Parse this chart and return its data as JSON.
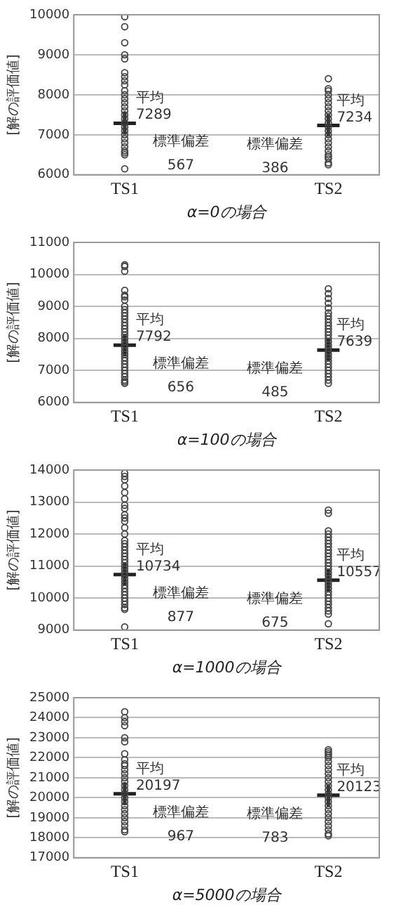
{
  "chart_data": [
    {
      "type": "scatter",
      "xlabel": "α=0の場合",
      "ylabel": "[解の評価値]",
      "categories": [
        "TS1",
        "TS2"
      ],
      "ylim": [
        6000,
        10000
      ],
      "yticks": [
        6000,
        7000,
        8000,
        9000,
        10000
      ],
      "grid": "y",
      "legend": false,
      "series": [
        {
          "marker": "circle",
          "color": "#444444",
          "x": [
            "TS1",
            "TS1",
            "TS1",
            "TS1",
            "TS1",
            "TS1",
            "TS1",
            "TS1",
            "TS1",
            "TS1",
            "TS1",
            "TS1",
            "TS1",
            "TS1",
            "TS1",
            "TS1",
            "TS1",
            "TS1",
            "TS1",
            "TS1",
            "TS1",
            "TS1",
            "TS1",
            "TS1",
            "TS1",
            "TS1",
            "TS1",
            "TS1",
            "TS2",
            "TS2",
            "TS2",
            "TS2",
            "TS2",
            "TS2",
            "TS2",
            "TS2",
            "TS2",
            "TS2",
            "TS2",
            "TS2",
            "TS2",
            "TS2",
            "TS2",
            "TS2",
            "TS2",
            "TS2",
            "TS2",
            "TS2",
            "TS2",
            "TS2",
            "TS2"
          ],
          "values": [
            9950,
            9700,
            9300,
            9000,
            8900,
            8550,
            8450,
            8350,
            8250,
            8100,
            8000,
            7900,
            7800,
            7700,
            7600,
            7500,
            7400,
            7300,
            7200,
            7100,
            7000,
            6900,
            6800,
            6700,
            6600,
            6550,
            6500,
            6150,
            8400,
            8150,
            8100,
            8000,
            7900,
            7800,
            7700,
            7600,
            7500,
            7400,
            7300,
            7200,
            7100,
            7000,
            6900,
            6800,
            6700,
            6600,
            6500,
            6450,
            6400,
            6300,
            6250
          ]
        },
        {
          "marker": "cross",
          "color": "#222222",
          "x": [
            "TS1",
            "TS2"
          ],
          "values": [
            7289,
            7234
          ]
        }
      ],
      "annotations": [
        {
          "text": "平均\n7289",
          "x": "TS1",
          "y": 7289
        },
        {
          "text": "平均\n7234",
          "x": "TS2",
          "y": 7234
        },
        {
          "text": "標準偏差\n567",
          "x": "TS1"
        },
        {
          "text": "標準偏差\n386",
          "x": "TS2"
        }
      ]
    },
    {
      "type": "scatter",
      "xlabel": "α=100の場合",
      "ylabel": "[解の評価値]",
      "categories": [
        "TS1",
        "TS2"
      ],
      "ylim": [
        6000,
        11000
      ],
      "yticks": [
        6000,
        7000,
        8000,
        9000,
        10000,
        11000
      ],
      "grid": "y",
      "legend": false,
      "series": [
        {
          "marker": "circle",
          "color": "#444444",
          "x": [
            "TS1",
            "TS1",
            "TS1",
            "TS1",
            "TS1",
            "TS1",
            "TS1",
            "TS1",
            "TS1",
            "TS1",
            "TS1",
            "TS1",
            "TS1",
            "TS1",
            "TS1",
            "TS1",
            "TS1",
            "TS1",
            "TS1",
            "TS1",
            "TS1",
            "TS1",
            "TS1",
            "TS1",
            "TS1",
            "TS1",
            "TS1",
            "TS1",
            "TS1",
            "TS1",
            "TS1",
            "TS1",
            "TS1",
            "TS2",
            "TS2",
            "TS2",
            "TS2",
            "TS2",
            "TS2",
            "TS2",
            "TS2",
            "TS2",
            "TS2",
            "TS2",
            "TS2",
            "TS2",
            "TS2",
            "TS2",
            "TS2",
            "TS2",
            "TS2",
            "TS2",
            "TS2",
            "TS2",
            "TS2",
            "TS2",
            "TS2",
            "TS2",
            "TS2",
            "TS2",
            "TS2"
          ],
          "values": [
            10300,
            10250,
            10100,
            9500,
            9350,
            9300,
            9200,
            9000,
            8900,
            8800,
            8700,
            8600,
            8500,
            8400,
            8300,
            8200,
            8100,
            8000,
            7900,
            7800,
            7700,
            7600,
            7500,
            7400,
            7300,
            7200,
            7100,
            7000,
            6900,
            6800,
            6700,
            6650,
            6600,
            9550,
            9400,
            9250,
            9100,
            8950,
            8800,
            8700,
            8600,
            8500,
            8400,
            8300,
            8200,
            8100,
            8000,
            7900,
            7800,
            7700,
            7600,
            7500,
            7400,
            7300,
            7200,
            7100,
            7000,
            6900,
            6800,
            6700,
            6600
          ]
        },
        {
          "marker": "cross",
          "color": "#222222",
          "x": [
            "TS1",
            "TS2"
          ],
          "values": [
            7792,
            7639
          ]
        }
      ],
      "annotations": [
        {
          "text": "平均\n7792",
          "x": "TS1",
          "y": 7792
        },
        {
          "text": "平均\n7639",
          "x": "TS2",
          "y": 7639
        },
        {
          "text": "標準偏差\n656",
          "x": "TS1"
        },
        {
          "text": "標準偏差\n485",
          "x": "TS2"
        }
      ]
    },
    {
      "type": "scatter",
      "xlabel": "α=1000の場合",
      "ylabel": "[解の評価値]",
      "categories": [
        "TS1",
        "TS2"
      ],
      "ylim": [
        9000,
        14000
      ],
      "yticks": [
        9000,
        10000,
        11000,
        12000,
        13000,
        14000
      ],
      "grid": "y",
      "legend": false,
      "series": [
        {
          "marker": "circle",
          "color": "#444444",
          "x": [
            "TS1",
            "TS1",
            "TS1",
            "TS1",
            "TS1",
            "TS1",
            "TS1",
            "TS1",
            "TS1",
            "TS1",
            "TS1",
            "TS1",
            "TS1",
            "TS1",
            "TS1",
            "TS1",
            "TS1",
            "TS1",
            "TS1",
            "TS1",
            "TS1",
            "TS1",
            "TS1",
            "TS1",
            "TS1",
            "TS1",
            "TS1",
            "TS1",
            "TS1",
            "TS1",
            "TS1",
            "TS1",
            "TS1",
            "TS1",
            "TS1",
            "TS1",
            "TS1",
            "TS2",
            "TS2",
            "TS2",
            "TS2",
            "TS2",
            "TS2",
            "TS2",
            "TS2",
            "TS2",
            "TS2",
            "TS2",
            "TS2",
            "TS2",
            "TS2",
            "TS2",
            "TS2",
            "TS2",
            "TS2",
            "TS2",
            "TS2",
            "TS2",
            "TS2",
            "TS2",
            "TS2",
            "TS2",
            "TS2",
            "TS2",
            "TS2",
            "TS2",
            "TS2"
          ],
          "values": [
            13900,
            13800,
            13700,
            13500,
            13300,
            13100,
            12900,
            12800,
            12600,
            12500,
            12400,
            12200,
            12000,
            11800,
            11700,
            11600,
            11500,
            11400,
            11300,
            11200,
            11100,
            11000,
            10900,
            10800,
            10700,
            10600,
            10500,
            10400,
            10300,
            10200,
            10100,
            10000,
            9900,
            9800,
            9700,
            9650,
            9100,
            12750,
            12650,
            12100,
            12000,
            11900,
            11800,
            11700,
            11600,
            11500,
            11400,
            11300,
            11200,
            11100,
            11000,
            10900,
            10800,
            10700,
            10600,
            10500,
            10400,
            10300,
            10200,
            10100,
            10000,
            9900,
            9800,
            9700,
            9600,
            9500,
            9200
          ]
        },
        {
          "marker": "cross",
          "color": "#222222",
          "x": [
            "TS1",
            "TS2"
          ],
          "values": [
            10734,
            10557
          ]
        }
      ],
      "annotations": [
        {
          "text": "平均\n10734",
          "x": "TS1",
          "y": 10734
        },
        {
          "text": "平均\n10557",
          "x": "TS2",
          "y": 10557
        },
        {
          "text": "標準偏差\n877",
          "x": "TS1"
        },
        {
          "text": "標準偏差\n675",
          "x": "TS2"
        }
      ]
    },
    {
      "type": "scatter",
      "xlabel": "α=5000の場合",
      "ylabel": "[解の評価値]",
      "categories": [
        "TS1",
        "TS2"
      ],
      "ylim": [
        17000,
        25000
      ],
      "yticks": [
        17000,
        18000,
        19000,
        20000,
        21000,
        22000,
        23000,
        24000,
        25000
      ],
      "grid": "y",
      "legend": false,
      "series": [
        {
          "marker": "circle",
          "color": "#444444",
          "x": [
            "TS1",
            "TS1",
            "TS1",
            "TS1",
            "TS1",
            "TS1",
            "TS1",
            "TS1",
            "TS1",
            "TS1",
            "TS1",
            "TS1",
            "TS1",
            "TS1",
            "TS1",
            "TS1",
            "TS1",
            "TS1",
            "TS1",
            "TS1",
            "TS1",
            "TS1",
            "TS1",
            "TS1",
            "TS1",
            "TS1",
            "TS1",
            "TS2",
            "TS2",
            "TS2",
            "TS2",
            "TS2",
            "TS2",
            "TS2",
            "TS2",
            "TS2",
            "TS2",
            "TS2",
            "TS2",
            "TS2",
            "TS2",
            "TS2",
            "TS2",
            "TS2",
            "TS2",
            "TS2",
            "TS2",
            "TS2",
            "TS2",
            "TS2",
            "TS2",
            "TS2"
          ],
          "values": [
            24300,
            24000,
            23800,
            23600,
            23000,
            22800,
            22200,
            21900,
            21700,
            21600,
            21400,
            21200,
            21000,
            20800,
            20600,
            20400,
            20200,
            20000,
            19800,
            19600,
            19400,
            19200,
            19000,
            18800,
            18600,
            18400,
            18300,
            22400,
            22300,
            22200,
            22100,
            22000,
            21800,
            21600,
            21400,
            21200,
            21000,
            20800,
            20600,
            20400,
            20200,
            20000,
            19800,
            19600,
            19400,
            19200,
            19000,
            18800,
            18600,
            18400,
            18200,
            18100
          ]
        },
        {
          "marker": "cross",
          "color": "#222222",
          "x": [
            "TS1",
            "TS2"
          ],
          "values": [
            20197,
            20123
          ]
        }
      ],
      "annotations": [
        {
          "text": "平均\n20197",
          "x": "TS1",
          "y": 20197
        },
        {
          "text": "平均\n20123",
          "x": "TS2",
          "y": 20123
        },
        {
          "text": "標準偏差\n967",
          "x": "TS1"
        },
        {
          "text": "標準偏差\n783",
          "x": "TS2"
        }
      ]
    }
  ]
}
